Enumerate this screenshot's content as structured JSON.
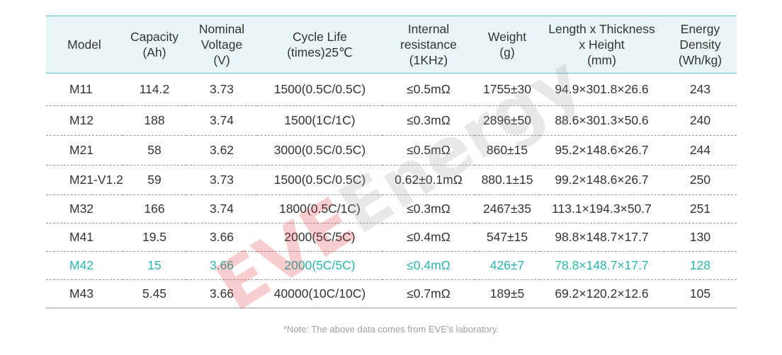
{
  "table": {
    "headers": [
      "Model",
      "Capacity\n(Ah)",
      "Nominal\nVoltage\n(V)",
      "Cycle Life\n(times)25℃",
      "Internal\nresistance\n(1KHz)",
      "Weight\n(g)",
      "Length x Thickness\nx Height\n(mm)",
      "Energy\nDensity\n(Wh/kg)"
    ],
    "rows": [
      [
        "M11",
        "114.2",
        "3.73",
        "1500(0.5C/0.5C)",
        "≤0.5mΩ",
        "1755±30",
        "94.9×301.8×26.6",
        "243"
      ],
      [
        "M12",
        "188",
        "3.74",
        "1500(1C/1C)",
        "≤0.3mΩ",
        "2896±50",
        "88.6×301.3×50.6",
        "240"
      ],
      [
        "M21",
        "58",
        "3.62",
        "3000(0.5C/0.5C)",
        "≤0.5mΩ",
        "860±15",
        "95.2×148.6×26.7",
        "244"
      ],
      [
        "M21-V1.2",
        "59",
        "3.73",
        "1500(0.5C/0.5C)",
        "0.62±0.1mΩ",
        "880.1±15",
        "99.2×148.6×26.7",
        "250"
      ],
      [
        "M32",
        "166",
        "3.74",
        "1800(0.5C/1C)",
        "≤0.3mΩ",
        "2467±35",
        "113.1×194.3×50.7",
        "251"
      ],
      [
        "M41",
        "19.5",
        "3.66",
        "2000(5C/5C)",
        "≤0.4mΩ",
        "547±15",
        "98.8×148.7×17.7",
        "130"
      ],
      [
        "M42",
        "15",
        "3.66",
        "2000(5C/5C)",
        "≤0.4mΩ",
        "426±7",
        "78.8×148.7×17.7",
        "128"
      ],
      [
        "M43",
        "5.45",
        "3.66",
        "40000(10C/10C)",
        "≤0.7mΩ",
        "189±5",
        "69.2×120.2×12.6",
        "105"
      ]
    ],
    "highlight_row": 6
  },
  "note": "*Note: The above data comes from EVE's laboratory.",
  "watermark": {
    "brand": "EVE",
    "word": "Energy"
  },
  "colors": {
    "header_bg": "#e9f6f8",
    "header_border": "#5fb8c7",
    "highlight_text": "#2bb5ad",
    "watermark_red": "#e02020",
    "note_text": "#a0a0a0"
  }
}
